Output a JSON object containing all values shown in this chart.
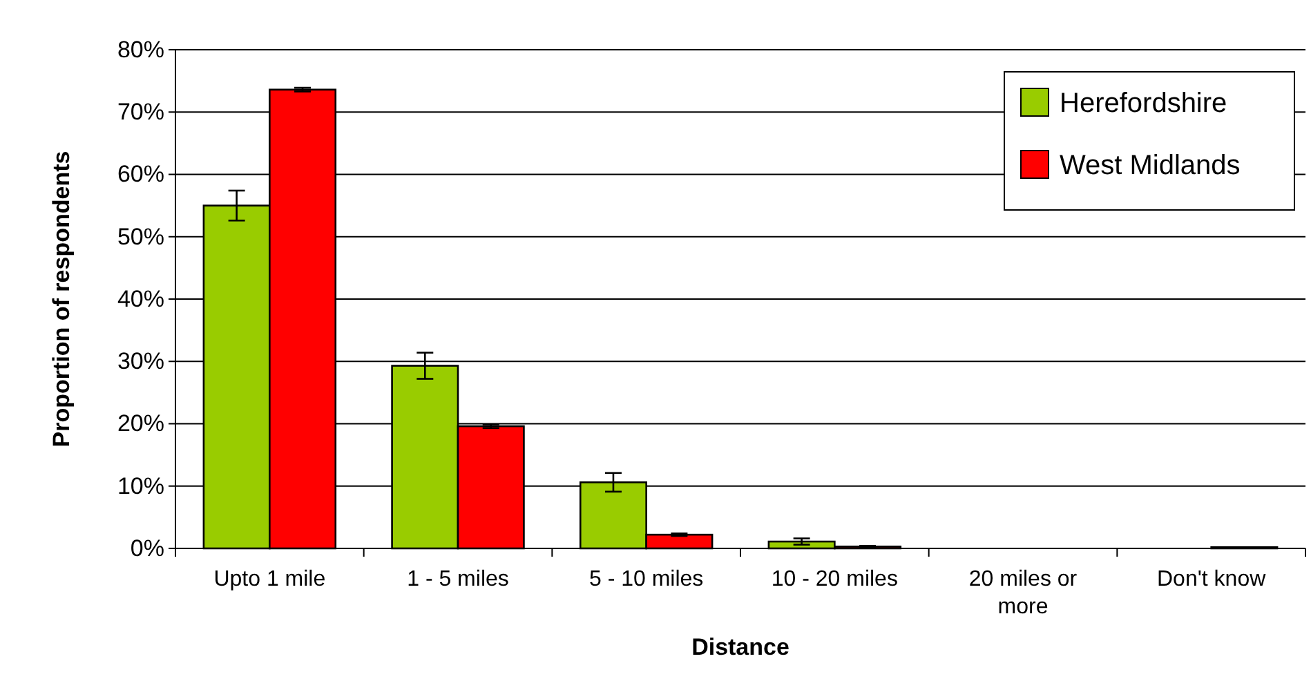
{
  "chart_data": {
    "type": "bar",
    "xlabel": "Distance",
    "ylabel": "Proportion of respondents",
    "categories": [
      "Upto 1 mile",
      "1 - 5 miles",
      "5 - 10 miles",
      "10 - 20 miles",
      "20 miles or more",
      "Don't know"
    ],
    "series": [
      {
        "name": "Herefordshire",
        "color": "#99cc00",
        "values": [
          55,
          29.3,
          10.6,
          1.1,
          0,
          0
        ],
        "errors": [
          2.4,
          2.1,
          1.5,
          0.5,
          null,
          null
        ]
      },
      {
        "name": "West Midlands",
        "color": "#ff0000",
        "values": [
          73.6,
          19.6,
          2.2,
          0.3,
          0,
          0.2
        ],
        "errors": [
          0.3,
          0.3,
          0.2,
          0.1,
          null,
          null
        ]
      }
    ],
    "ylim": [
      0,
      80
    ],
    "yticks": [
      {
        "value": 0,
        "label": "0%"
      },
      {
        "value": 10,
        "label": "10%"
      },
      {
        "value": 20,
        "label": "20%"
      },
      {
        "value": 30,
        "label": "30%"
      },
      {
        "value": 40,
        "label": "40%"
      },
      {
        "value": 50,
        "label": "50%"
      },
      {
        "value": 60,
        "label": "60%"
      },
      {
        "value": 70,
        "label": "70%"
      },
      {
        "value": 80,
        "label": "80%"
      }
    ],
    "grid": "y",
    "legend": "top right"
  }
}
